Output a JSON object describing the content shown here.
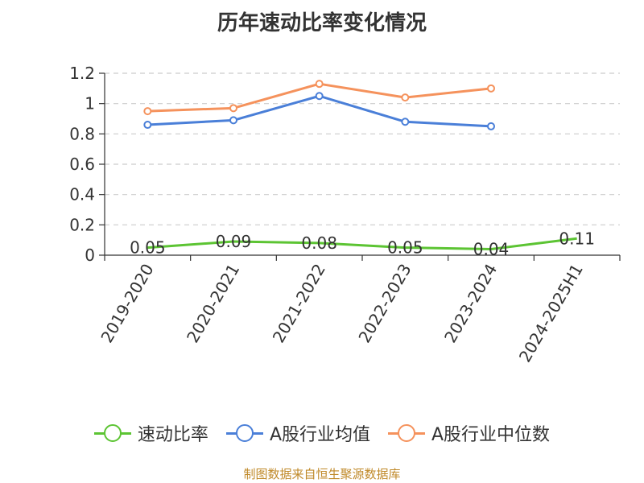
{
  "chart_data": {
    "type": "line",
    "title": "历年速动比率变化情况",
    "categories": [
      "2019-2020",
      "2020-2021",
      "2021-2022",
      "2022-2023",
      "2023-2024",
      "2024-2025H1"
    ],
    "y_ticks": [
      "0",
      "0.2",
      "0.4",
      "0.6",
      "0.8",
      "1",
      "1.2"
    ],
    "ylim": [
      0,
      1.2
    ],
    "xlabel": "",
    "ylabel": "",
    "grid": "horizontal dashed",
    "legend_position": "bottom",
    "series": [
      {
        "name": "速动比率",
        "color": "#5cc433",
        "values": [
          0.05,
          0.09,
          0.08,
          0.05,
          0.04,
          0.11
        ],
        "value_labels": [
          "0.05",
          "0.09",
          "0.08",
          "0.05",
          "0.04",
          "0.11"
        ],
        "show_labels": true
      },
      {
        "name": "A股行业均值",
        "color": "#4a7fd8",
        "values": [
          0.86,
          0.89,
          1.05,
          0.88,
          0.85,
          null
        ],
        "show_labels": false
      },
      {
        "name": "A股行业中位数",
        "color": "#f5925c",
        "values": [
          0.95,
          0.97,
          1.13,
          1.04,
          1.1,
          null
        ],
        "show_labels": false
      }
    ]
  },
  "source_note": "制图数据来自恒生聚源数据库"
}
